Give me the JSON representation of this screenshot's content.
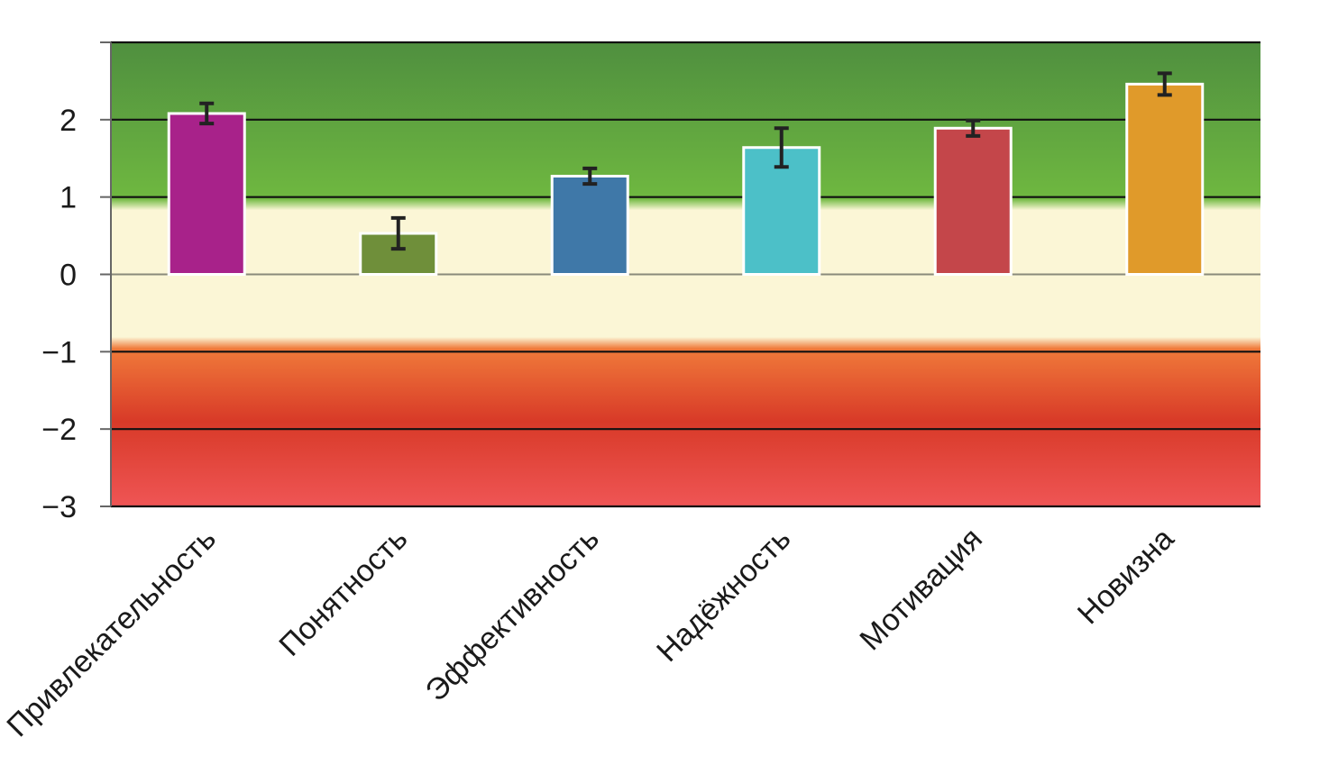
{
  "chart_data": {
    "type": "bar",
    "title": "",
    "xlabel": "",
    "ylabel": "",
    "ylim": [
      -3,
      3
    ],
    "yticks": [
      {
        "value": 2,
        "label": "2"
      },
      {
        "value": 1,
        "label": "1"
      },
      {
        "value": 0,
        "label": "0"
      },
      {
        "value": -1,
        "label": "−1"
      },
      {
        "value": -2,
        "label": "−2"
      },
      {
        "value": -3,
        "label": "−3"
      }
    ],
    "gridlines": [
      3,
      2,
      1,
      0,
      -1,
      -2,
      -3
    ],
    "bands": [
      {
        "name": "positive",
        "from": 0.95,
        "to": 3
      },
      {
        "name": "neutral",
        "from": -0.9,
        "to": 0.95
      },
      {
        "name": "negative",
        "from": -3,
        "to": -0.9
      }
    ],
    "categories": [
      "Привлекательность",
      "Понятность",
      "Эффективность",
      "Надёжность",
      "Мотивация",
      "Новизна"
    ],
    "values": [
      2.08,
      0.53,
      1.27,
      1.64,
      1.89,
      2.46
    ],
    "errors": [
      0.13,
      0.2,
      0.1,
      0.25,
      0.1,
      0.14
    ],
    "colors": [
      "#a8228a",
      "#6f8f3a",
      "#3f78a8",
      "#4cc0c8",
      "#c4464a",
      "#e09a2a"
    ],
    "palette": {
      "green_top": "#4f8f3f",
      "green_bottom": "#6fb840",
      "neutral": "#fbf6d6",
      "red_top": "#f07a3a",
      "red_mid": "#d83a28",
      "red_bottom": "#ef5555",
      "error_bar": "#222222",
      "gridline": "#111111"
    }
  }
}
